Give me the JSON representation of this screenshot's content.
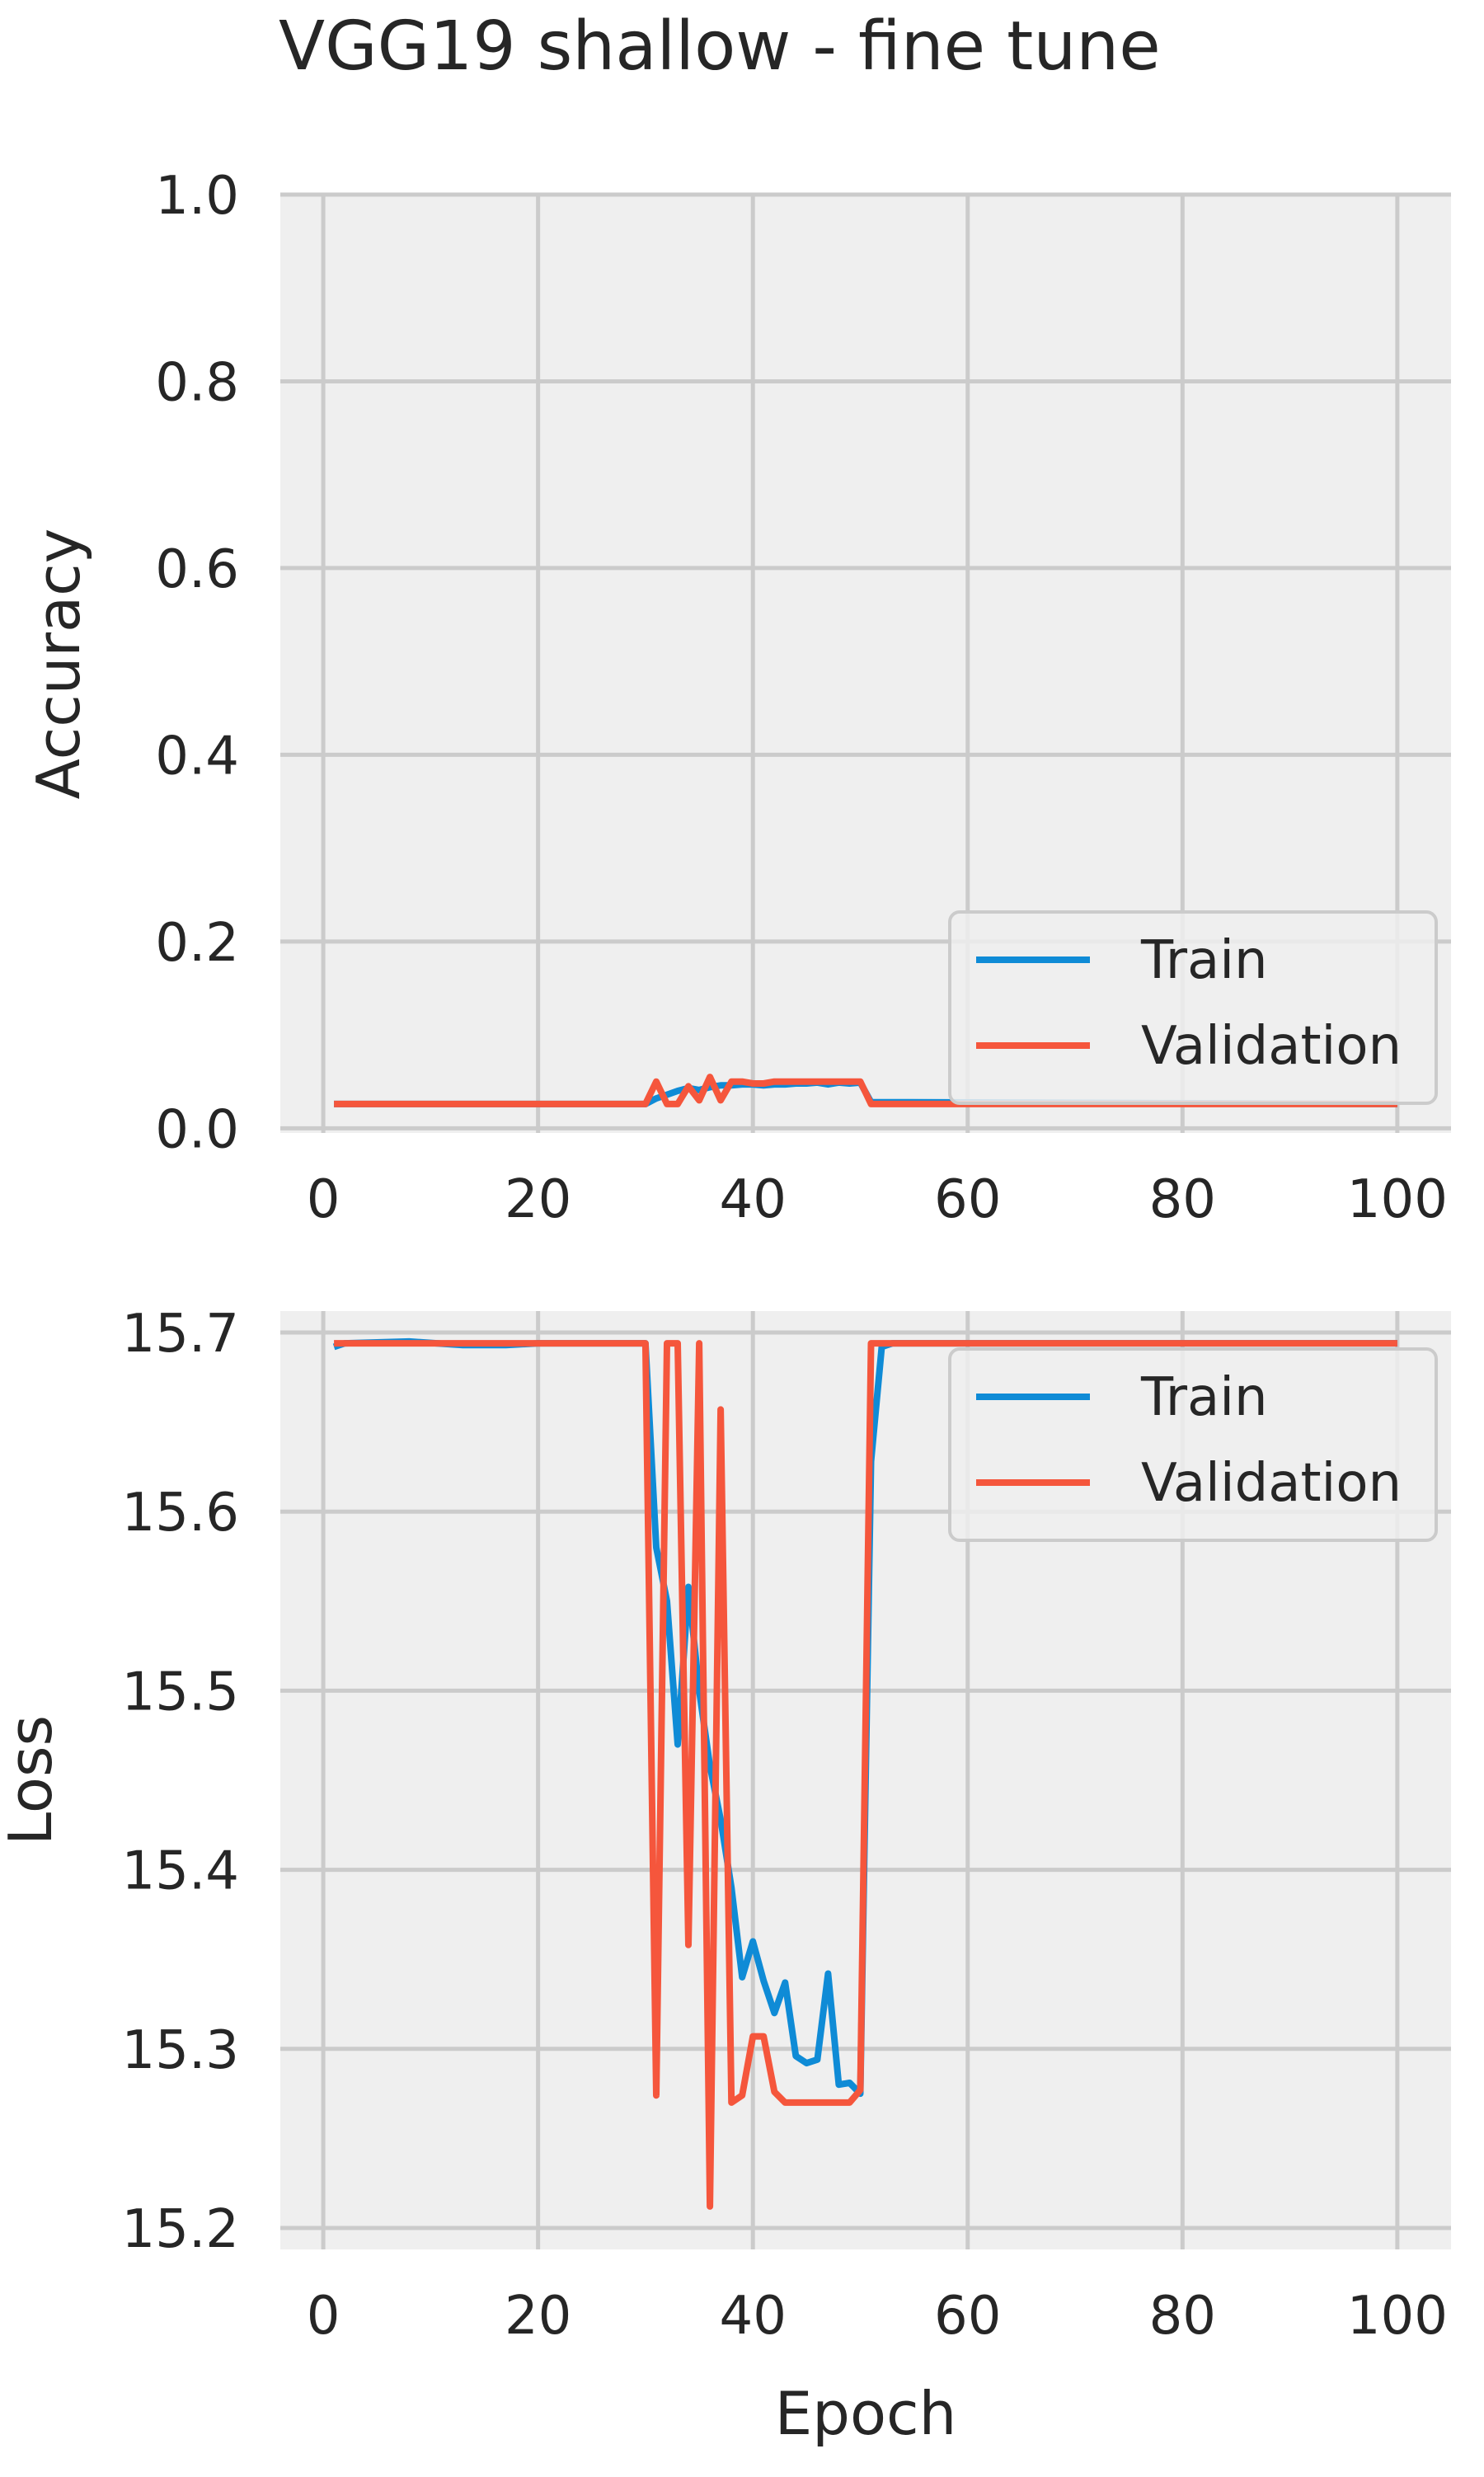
{
  "figure": {
    "title": "VGG19 shallow - fine tune"
  },
  "colors": {
    "train": "#0f8bd6",
    "validation": "#f5563c",
    "plot_bg": "#efefef",
    "grid": "#cbcbcb",
    "text": "#262626"
  },
  "chart_data": [
    {
      "type": "line",
      "title": "",
      "xlabel": "",
      "ylabel": "Accuracy",
      "xlim": [
        -4,
        105
      ],
      "ylim": [
        -0.005,
        1.0
      ],
      "xticks": [
        0,
        20,
        40,
        60,
        80,
        100
      ],
      "yticks": [
        0.0,
        0.2,
        0.4,
        0.6,
        0.8,
        1.0
      ],
      "ytick_labels": [
        "0.0",
        "0.2",
        "0.4",
        "0.6",
        "0.8",
        "1.0"
      ],
      "grid": true,
      "legend": {
        "position": "lower-right",
        "entries": [
          "Train",
          "Validation"
        ]
      },
      "series": [
        {
          "name": "Train",
          "color": "#0f8bd6",
          "x": [
            1,
            30,
            31,
            32,
            33,
            34,
            35,
            36,
            37,
            38,
            39,
            40,
            41,
            42,
            43,
            44,
            45,
            46,
            47,
            48,
            49,
            50,
            51,
            100
          ],
          "y": [
            0.026,
            0.026,
            0.032,
            0.036,
            0.04,
            0.043,
            0.041,
            0.044,
            0.046,
            0.046,
            0.047,
            0.047,
            0.046,
            0.047,
            0.047,
            0.048,
            0.048,
            0.049,
            0.047,
            0.049,
            0.048,
            0.049,
            0.028,
            0.026
          ]
        },
        {
          "name": "Validation",
          "color": "#f5563c",
          "x": [
            1,
            30,
            31,
            32,
            33,
            34,
            35,
            36,
            37,
            38,
            39,
            40,
            41,
            42,
            43,
            44,
            45,
            46,
            47,
            48,
            49,
            50,
            51,
            100
          ],
          "y": [
            0.026,
            0.026,
            0.05,
            0.026,
            0.026,
            0.045,
            0.03,
            0.055,
            0.03,
            0.05,
            0.05,
            0.048,
            0.048,
            0.05,
            0.05,
            0.05,
            0.05,
            0.05,
            0.05,
            0.05,
            0.05,
            0.05,
            0.026,
            0.026
          ]
        }
      ]
    },
    {
      "type": "line",
      "title": "",
      "xlabel": "Epoch",
      "ylabel": "Loss",
      "xlim": [
        -4,
        105
      ],
      "ylim": [
        15.188,
        15.712
      ],
      "xticks": [
        0,
        20,
        40,
        60,
        80,
        100
      ],
      "yticks": [
        15.2,
        15.3,
        15.4,
        15.5,
        15.6,
        15.7
      ],
      "ytick_labels": [
        "15.2",
        "15.3",
        "15.4",
        "15.5",
        "15.6",
        "15.7"
      ],
      "grid": true,
      "legend": {
        "position": "upper-right",
        "entries": [
          "Train",
          "Validation"
        ]
      },
      "series": [
        {
          "name": "Train",
          "color": "#0f8bd6",
          "x": [
            1,
            2,
            8,
            13,
            17,
            20,
            25,
            30,
            31,
            32,
            33,
            34,
            35,
            36,
            37,
            38,
            39,
            40,
            41,
            42,
            43,
            44,
            45,
            46,
            47,
            48,
            49,
            50,
            51,
            52,
            53,
            56,
            60,
            100
          ],
          "y": [
            15.692,
            15.694,
            15.695,
            15.693,
            15.693,
            15.694,
            15.694,
            15.694,
            15.58,
            15.55,
            15.47,
            15.558,
            15.5,
            15.458,
            15.428,
            15.39,
            15.34,
            15.36,
            15.338,
            15.32,
            15.337,
            15.296,
            15.292,
            15.294,
            15.342,
            15.28,
            15.281,
            15.275,
            15.628,
            15.692,
            15.694,
            15.694,
            15.694,
            15.694
          ]
        },
        {
          "name": "Validation",
          "color": "#f5563c",
          "x": [
            1,
            30,
            31,
            32,
            33,
            34,
            35,
            36,
            37,
            38,
            39,
            40,
            41,
            42,
            43,
            44,
            45,
            46,
            47,
            48,
            49,
            50,
            51,
            100
          ],
          "y": [
            15.694,
            15.694,
            15.274,
            15.694,
            15.694,
            15.358,
            15.694,
            15.212,
            15.657,
            15.27,
            15.274,
            15.307,
            15.307,
            15.276,
            15.27,
            15.27,
            15.27,
            15.27,
            15.27,
            15.27,
            15.27,
            15.277,
            15.694,
            15.694
          ]
        }
      ]
    }
  ]
}
